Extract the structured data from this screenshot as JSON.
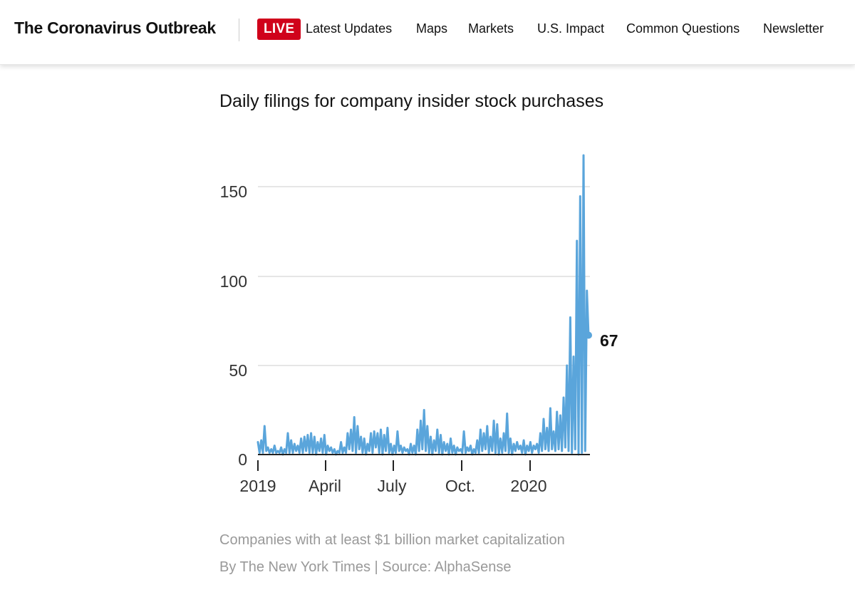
{
  "header": {
    "brand": "The Coronavirus Outbreak",
    "live_badge": "LIVE",
    "nav": [
      "Latest Updates",
      "Maps",
      "Markets",
      "U.S. Impact",
      "Common Questions",
      "Newsletter"
    ]
  },
  "chart_data": {
    "type": "line",
    "title": "Daily filings for company insider stock purchases",
    "xlabel": "",
    "ylabel": "",
    "x_tick_labels": [
      "2019",
      "April",
      "July",
      "Oct.",
      "2020"
    ],
    "y_ticks": [
      0,
      50,
      100,
      150
    ],
    "ylim": [
      0,
      170
    ],
    "grid": true,
    "line_color": "#5aa5db",
    "series": [
      {
        "name": "Daily filings",
        "values": [
          7,
          1,
          8,
          1,
          16,
          2,
          4,
          1,
          3,
          1,
          5,
          1,
          2,
          1,
          4,
          0,
          3,
          1,
          12,
          1,
          8,
          1,
          6,
          2,
          5,
          1,
          9,
          1,
          10,
          2,
          11,
          1,
          12,
          1,
          10,
          0,
          7,
          2,
          9,
          1,
          11,
          0,
          5,
          2,
          4,
          1,
          3,
          0,
          2,
          1,
          7,
          1,
          4,
          1,
          12,
          3,
          14,
          2,
          21,
          1,
          16,
          3,
          10,
          1,
          9,
          0,
          6,
          2,
          12,
          1,
          13,
          4,
          12,
          1,
          14,
          0,
          11,
          2,
          15,
          1,
          6,
          0,
          5,
          1,
          13,
          2,
          5,
          1,
          4,
          2,
          3,
          0,
          6,
          1,
          5,
          0,
          14,
          2,
          19,
          3,
          25,
          2,
          16,
          1,
          10,
          0,
          8,
          2,
          14,
          1,
          11,
          0,
          7,
          2,
          6,
          0,
          9,
          1,
          5,
          0,
          4,
          2,
          3,
          1,
          13,
          1,
          4,
          2,
          5,
          0,
          3,
          1,
          8,
          1,
          14,
          2,
          12,
          3,
          16,
          1,
          10,
          2,
          19,
          1,
          17,
          0,
          9,
          1,
          12,
          2,
          23,
          1,
          9,
          0,
          6,
          2,
          7,
          3,
          5,
          1,
          8,
          0,
          5,
          2,
          7,
          1,
          5,
          3,
          6,
          1,
          12,
          2,
          20,
          3,
          15,
          2,
          26,
          3,
          13,
          2,
          24,
          3,
          22,
          2,
          32,
          4,
          50,
          2,
          77,
          1,
          55,
          3,
          120,
          0,
          145,
          1,
          168,
          2,
          92,
          67
        ],
        "last_value_label": "67"
      }
    ],
    "notes": [
      "Companies with at least $1 billion market capitalization",
      "By The New York Times | Source: AlphaSense"
    ]
  }
}
